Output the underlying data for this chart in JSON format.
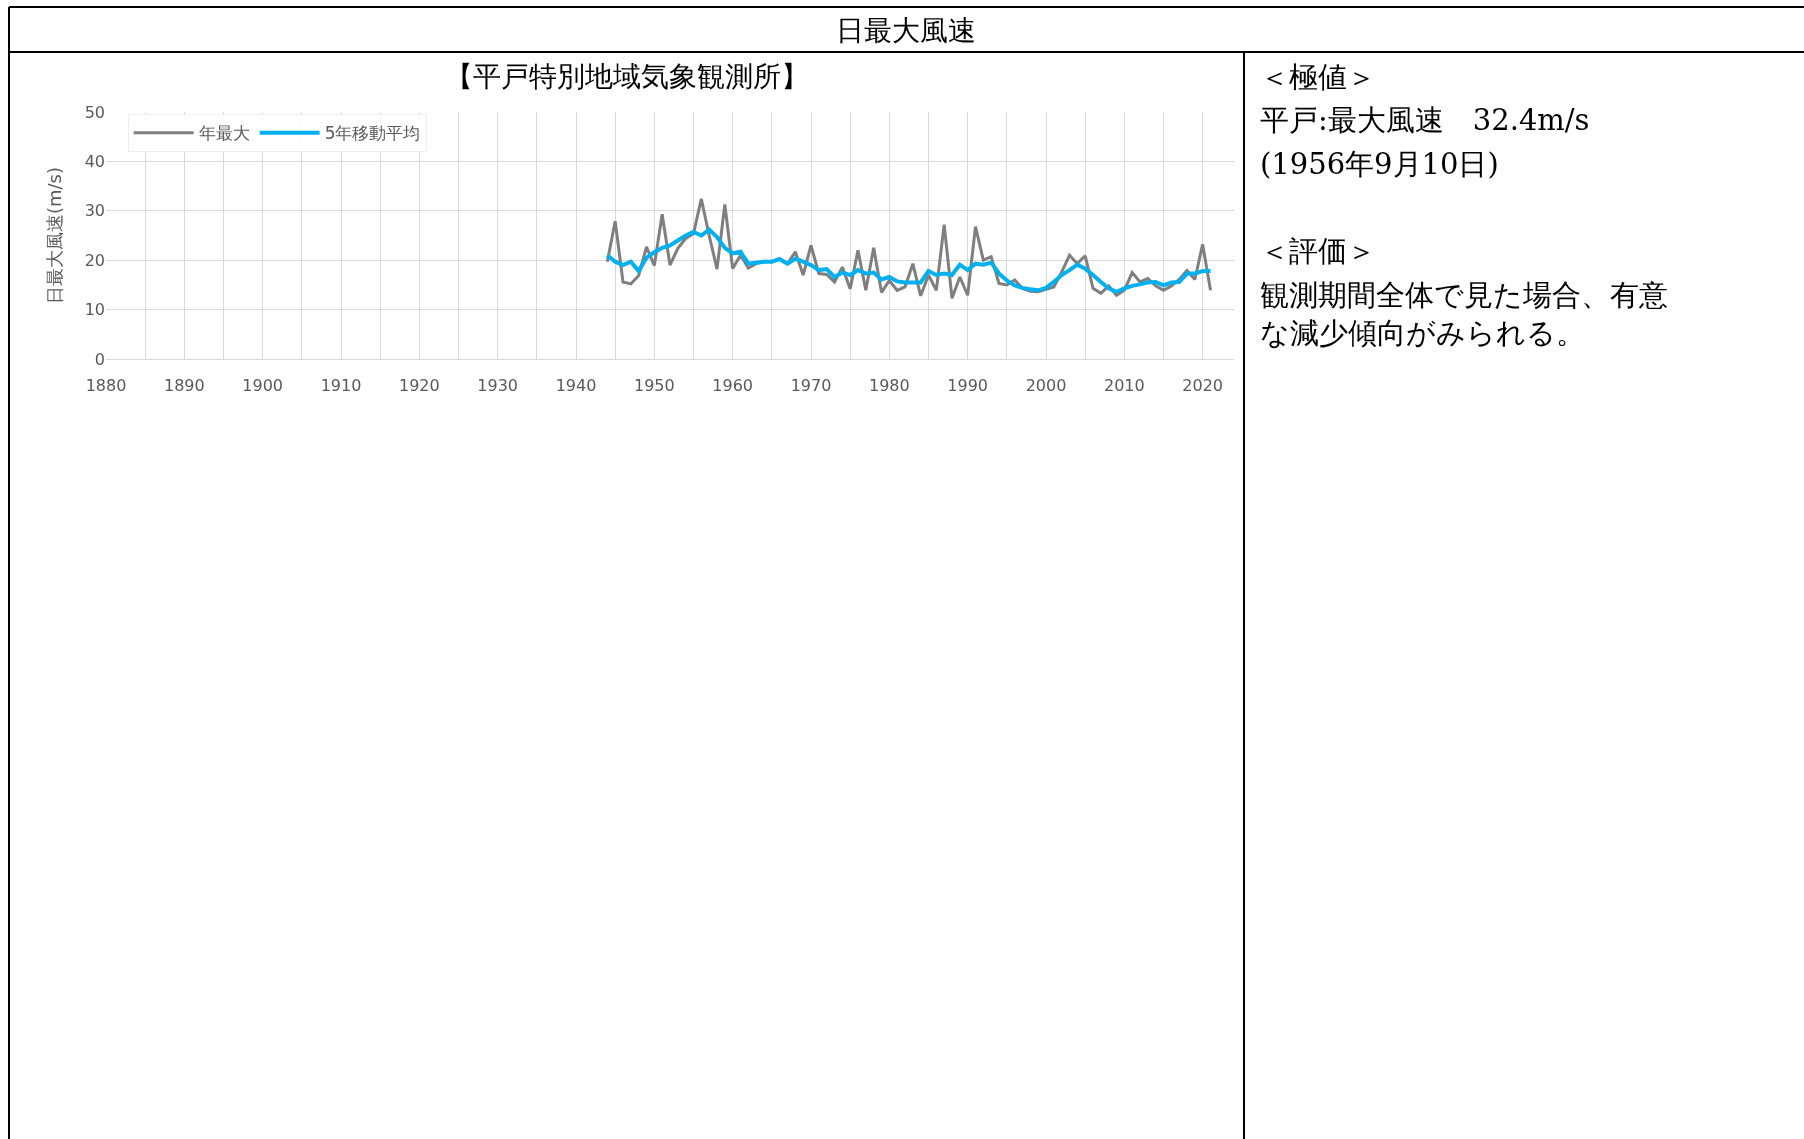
{
  "chart_data": {
    "type": "line",
    "title": "【平戸特別地域気象観測所】",
    "ylabel": "日最大風速(m/s)",
    "annotations": [
      "日最大風速",
      "＜極値＞",
      "平戸:最大風速　32.4m/s",
      "(1956年9月10日)",
      "＜評価＞",
      "観測期間全体で見た場合、有意な減少傾向がみられる。"
    ],
    "x": [
      1944,
      1945,
      1946,
      1947,
      1948,
      1949,
      1950,
      1951,
      1952,
      1953,
      1954,
      1955,
      1956,
      1957,
      1958,
      1959,
      1960,
      1961,
      1962,
      1963,
      1964,
      1965,
      1966,
      1967,
      1968,
      1969,
      1970,
      1971,
      1972,
      1973,
      1974,
      1975,
      1976,
      1977,
      1978,
      1979,
      1980,
      1981,
      1982,
      1983,
      1984,
      1985,
      1986,
      1987,
      1988,
      1989,
      1990,
      1991,
      1992,
      1993,
      1994,
      1995,
      1996,
      1997,
      1998,
      1999,
      2000,
      2001,
      2002,
      2003,
      2004,
      2005,
      2006,
      2007,
      2008,
      2009,
      2010,
      2011,
      2012,
      2013,
      2014,
      2015,
      2016,
      2017,
      2018,
      2019,
      2020,
      2021
    ],
    "series": [
      {
        "name": "年最大",
        "color": "#7f7f7f",
        "values": [
          19.7,
          27.9,
          15.6,
          15.2,
          16.9,
          22.7,
          18.9,
          29.3,
          19.0,
          22.4,
          24.4,
          25.4,
          32.4,
          25.0,
          18.2,
          31.3,
          18.3,
          21.0,
          18.4,
          19.3,
          19.8,
          19.7,
          20.3,
          19.3,
          21.7,
          17.0,
          23.0,
          17.3,
          17.1,
          15.6,
          18.6,
          14.2,
          22.0,
          13.9,
          22.5,
          13.5,
          15.9,
          13.9,
          14.6,
          19.3,
          12.8,
          17.0,
          13.9,
          27.2,
          12.3,
          16.6,
          12.9,
          26.8,
          20.0,
          20.7,
          15.3,
          15.0,
          16.0,
          14.3,
          13.7,
          13.6,
          14.1,
          14.6,
          17.6,
          21.0,
          19.3,
          20.9,
          14.3,
          13.3,
          14.8,
          12.9,
          13.9,
          17.5,
          15.6,
          16.3,
          14.8,
          13.9,
          14.8,
          16.1,
          17.9,
          16.1,
          23.2,
          13.9
        ]
      },
      {
        "name": "5年移動平均",
        "color": "#00b0f0",
        "values": [
          21.0,
          19.7,
          19.0,
          19.7,
          17.8,
          20.5,
          21.6,
          22.5,
          23.0,
          24.0,
          25.0,
          25.7,
          25.0,
          26.2,
          24.7,
          22.5,
          21.4,
          21.7,
          19.3,
          19.5,
          19.7,
          19.7,
          20.2,
          19.3,
          20.3,
          19.7,
          19.0,
          18.0,
          18.2,
          16.6,
          17.5,
          17.0,
          18.0,
          17.3,
          17.5,
          16.1,
          16.6,
          15.7,
          15.5,
          15.5,
          15.5,
          17.8,
          17.0,
          17.3,
          17.0,
          19.1,
          18.0,
          19.3,
          19.1,
          19.5,
          17.3,
          15.9,
          14.9,
          14.4,
          14.1,
          13.9,
          14.4,
          15.6,
          17.0,
          18.0,
          19.1,
          18.3,
          17.0,
          15.6,
          14.3,
          13.6,
          14.3,
          14.8,
          15.1,
          15.5,
          15.6,
          14.9,
          15.5,
          15.6,
          17.3,
          17.3,
          17.8,
          17.8
        ]
      }
    ],
    "xlim": [
      1880,
      2024
    ],
    "xticks": [
      1880,
      {
        "value": 1885,
        "label": null
      },
      1890,
      {
        "value": 1895,
        "label": null
      },
      1900,
      {
        "value": 1905,
        "label": null
      },
      1910,
      {
        "value": 1915,
        "label": null
      },
      1920,
      {
        "value": 1925,
        "label": null
      },
      1930,
      {
        "value": 1935,
        "label": null
      },
      1940,
      {
        "value": 1945,
        "label": null
      },
      1950,
      {
        "value": 1955,
        "label": null
      },
      1960,
      {
        "value": 1965,
        "label": null
      },
      1970,
      {
        "value": 1975,
        "label": null
      },
      1980,
      {
        "value": 1985,
        "label": null
      },
      1990,
      {
        "value": 1995,
        "label": null
      },
      2000,
      {
        "value": 2005,
        "label": null
      },
      2010,
      {
        "value": 2015,
        "label": null
      },
      2020
    ],
    "ylim": [
      0,
      50
    ],
    "yticks": [
      0,
      10,
      20,
      30,
      40,
      50
    ],
    "grid": true,
    "legend": "top left",
    "marker": "none",
    "line_style": "solid"
  }
}
